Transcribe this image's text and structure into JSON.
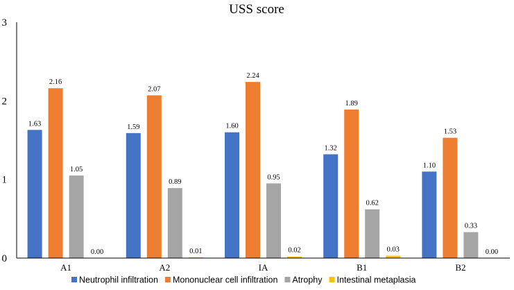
{
  "chart_data": {
    "type": "bar",
    "title": "USS score",
    "xlabel": "",
    "ylabel": "",
    "ylim": [
      0,
      3
    ],
    "yticks": [
      "0",
      "1",
      "2",
      "3"
    ],
    "grid": false,
    "legend_position": "bottom",
    "categories": [
      "A1",
      "A2",
      "IA",
      "B1",
      "B2"
    ],
    "series": [
      {
        "name": "Neutrophil infiltration",
        "color": "#4472C4",
        "values": [
          1.63,
          1.59,
          1.6,
          1.32,
          1.1
        ],
        "labels": [
          "1.63",
          "1.59",
          "1.60",
          "1.32",
          "1.10"
        ]
      },
      {
        "name": "Mononuclear cell infiltration",
        "color": "#ED7D31",
        "values": [
          2.16,
          2.07,
          2.24,
          1.89,
          1.53
        ],
        "labels": [
          "2.16",
          "2.07",
          "2.24",
          "1.89",
          "1.53"
        ]
      },
      {
        "name": "Atrophy",
        "color": "#A5A5A5",
        "values": [
          1.05,
          0.89,
          0.95,
          0.62,
          0.33
        ],
        "labels": [
          "1.05",
          "0.89",
          "0.95",
          "0.62",
          "0.33"
        ]
      },
      {
        "name": "Intestinal metaplasia",
        "color": "#FFC000",
        "values": [
          0.0,
          0.01,
          0.02,
          0.03,
          0.0
        ],
        "labels": [
          "0.00",
          "0.01",
          "0.02",
          "0.03",
          "0.00"
        ]
      }
    ]
  }
}
